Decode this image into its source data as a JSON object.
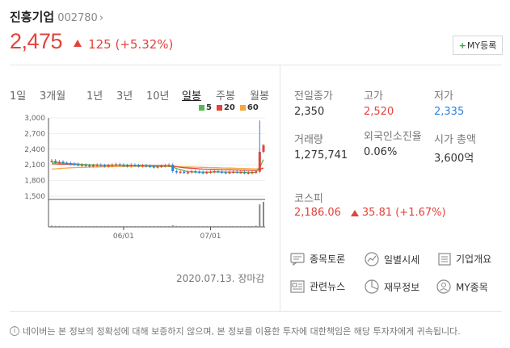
{
  "header": {
    "name": "진흥기업",
    "code": "002780",
    "chevron": "›"
  },
  "price": {
    "current": "2,475",
    "change": "125 (+5.32%)"
  },
  "my_button": {
    "plus": "+",
    "label": "MY등록"
  },
  "periods": [
    "1일",
    "3개월",
    "1년",
    "3년",
    "10년",
    "일봉",
    "주봉",
    "월봉"
  ],
  "active_period": "일봉",
  "legend": [
    {
      "label": "5",
      "color": "#55b84c"
    },
    {
      "label": "20",
      "color": "#e2433b"
    },
    {
      "label": "60",
      "color": "#f5a742"
    }
  ],
  "chart_data": {
    "type": "line",
    "y_ticks": [
      "3,000",
      "2,700",
      "2,400",
      "2,100",
      "1,800",
      "1,500"
    ],
    "x_ticks": [
      "06/01",
      "07/01"
    ],
    "ylim": [
      1500,
      3000
    ],
    "candle_series": [
      2180,
      2150,
      2160,
      2140,
      2130,
      2120,
      2110,
      2100,
      2100,
      2090,
      2080,
      2090,
      2100,
      2090,
      2080,
      2090,
      2100,
      2110,
      2100,
      2090,
      2080,
      2100,
      2090,
      2080,
      2090,
      2080,
      2070,
      2060,
      2070,
      2080,
      2090,
      2100,
      1980,
      1960,
      1970,
      1950,
      1960,
      1980,
      1970,
      1960,
      1950,
      1960,
      1970,
      1980,
      1970,
      1960,
      1950,
      1960,
      1970,
      1960,
      1960,
      1950,
      1950,
      1960,
      1970,
      2350,
      2475
    ],
    "ma5": [
      2150,
      2145,
      2140,
      2135,
      2130,
      2125,
      2120,
      2115,
      2110,
      2105,
      2100,
      2098,
      2095,
      2093,
      2090,
      2090,
      2092,
      2095,
      2096,
      2097,
      2095,
      2093,
      2092,
      2090,
      2088,
      2085,
      2082,
      2078,
      2075,
      2074,
      2075,
      2077,
      2060,
      2030,
      2010,
      1990,
      1970,
      1965,
      1962,
      1962,
      1962,
      1962,
      1963,
      1964,
      1964,
      1964,
      1963,
      1962,
      1961,
      1960,
      1960,
      1960,
      1958,
      1958,
      1960,
      2050,
      2200
    ],
    "ma20": [
      2120,
      2118,
      2116,
      2114,
      2112,
      2110,
      2108,
      2106,
      2104,
      2102,
      2100,
      2098,
      2097,
      2096,
      2095,
      2095,
      2095,
      2095,
      2095,
      2094,
      2093,
      2092,
      2091,
      2090,
      2090,
      2089,
      2088,
      2087,
      2086,
      2085,
      2085,
      2084,
      2075,
      2065,
      2055,
      2045,
      2040,
      2035,
      2030,
      2025,
      2020,
      2018,
      2016,
      2014,
      2012,
      2010,
      2008,
      2006,
      2004,
      2002,
      2000,
      1998,
      1996,
      1995,
      1994,
      2010,
      2040
    ],
    "ma60": [
      2020,
      2025,
      2030,
      2035,
      2040,
      2045,
      2048,
      2050,
      2052,
      2054,
      2056,
      2058,
      2060,
      2062,
      2063,
      2064,
      2065,
      2066,
      2067,
      2068,
      2069,
      2070,
      2070,
      2070,
      2070,
      2070,
      2070,
      2070,
      2070,
      2070,
      2070,
      2070,
      2068,
      2066,
      2064,
      2062,
      2060,
      2058,
      2056,
      2054,
      2052,
      2050,
      2048,
      2046,
      2044,
      2042,
      2040,
      2038,
      2036,
      2034,
      2032,
      2030,
      2028,
      2026,
      2025,
      2030,
      2040
    ],
    "volume": [
      0.05,
      0.04,
      0.04,
      0.03,
      0.03,
      0.03,
      0.03,
      0.03,
      0.03,
      0.03,
      0.03,
      0.03,
      0.03,
      0.03,
      0.03,
      0.03,
      0.03,
      0.03,
      0.03,
      0.03,
      0.03,
      0.03,
      0.03,
      0.03,
      0.03,
      0.03,
      0.03,
      0.03,
      0.03,
      0.03,
      0.03,
      0.03,
      0.06,
      0.04,
      0.03,
      0.03,
      0.03,
      0.03,
      0.03,
      0.03,
      0.03,
      0.03,
      0.03,
      0.03,
      0.03,
      0.03,
      0.03,
      0.03,
      0.03,
      0.03,
      0.03,
      0.03,
      0.03,
      0.03,
      0.05,
      0.9,
      1.0
    ]
  },
  "chart_date": "2020.07.13. 장마감",
  "info": {
    "prev_close_label": "전일종가",
    "prev_close": "2,350",
    "high_label": "고가",
    "high": "2,520",
    "low_label": "저가",
    "low": "2,335",
    "volume_label": "거래량",
    "volume": "1,275,741",
    "foreign_label": "외국인소진율",
    "foreign": "0.06%",
    "mcap_label": "시가 총액",
    "mcap": "3,600억"
  },
  "kospi": {
    "label": "코스피",
    "value": "2,186.06",
    "change": "35.81 (+1.67%)"
  },
  "links": {
    "discussion": "종목토론",
    "daily": "일별시세",
    "overview": "기업개요",
    "news": "관련뉴스",
    "financial": "재무정보",
    "my": "MY종목"
  },
  "notice": "네이버는 본 정보의 정확성에 대해 보증하지 않으며, 본 정보를 이용한 투자에 대한책임은 해당 투자자에게 귀속됩니다."
}
